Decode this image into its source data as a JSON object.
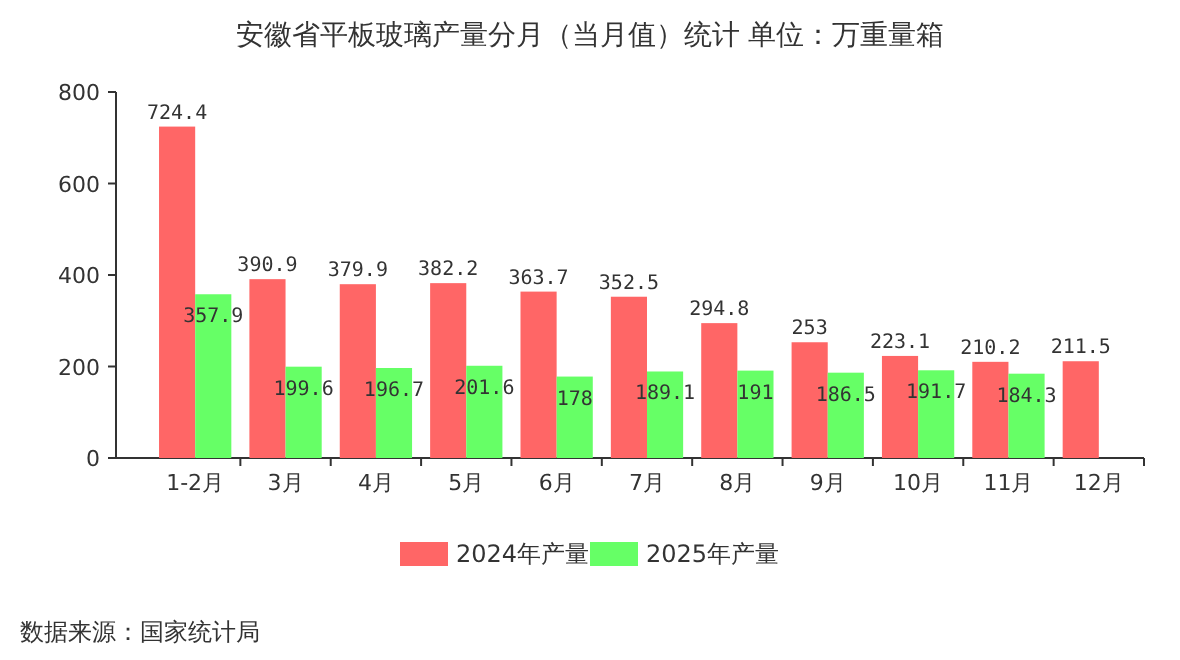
{
  "chart_data": {
    "type": "bar",
    "title": "安徽省平板玻璃产量分月（当月值）统计  单位：万重量箱",
    "categories": [
      "1-2月",
      "3月",
      "4月",
      "5月",
      "6月",
      "7月",
      "8月",
      "9月",
      "10月",
      "11月",
      "12月"
    ],
    "series": [
      {
        "name": "2024年产量",
        "color": "#ff6666",
        "values": [
          724.4,
          390.9,
          379.9,
          382.2,
          363.7,
          352.5,
          294.8,
          253,
          223.1,
          210.2,
          211.5
        ]
      },
      {
        "name": "2025年产量",
        "color": "#66ff66",
        "values": [
          357.9,
          199.6,
          196.7,
          201.6,
          178,
          189.1,
          191,
          186.5,
          191.7,
          184.3,
          null
        ]
      }
    ],
    "ylim": [
      0,
      800
    ],
    "yticks": [
      0,
      200,
      400,
      600,
      800
    ],
    "data_labels": true,
    "grid": false,
    "legend": "bottom",
    "annotations": [
      "数据来源：国家统计局"
    ]
  }
}
